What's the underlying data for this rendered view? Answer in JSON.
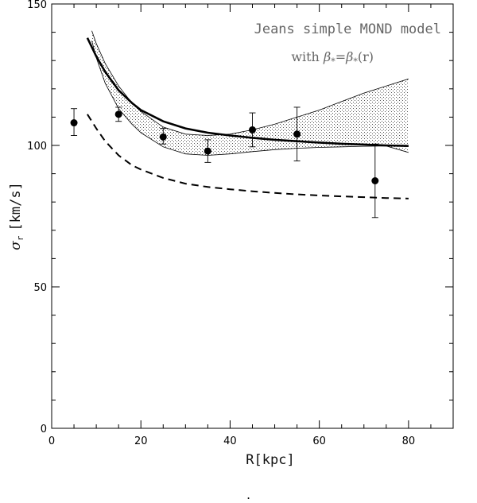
{
  "chart_data": {
    "type": "scatter",
    "title": "Jeans simple MOND model",
    "subtitle": {
      "prefix": "with ",
      "beta1": "β",
      "sub1": "*",
      "eq": "=",
      "beta2": "β",
      "sub2": "*",
      "suffix": "(r)"
    },
    "xlabel": "R[kpc]",
    "ylabel": {
      "symbol": "σ",
      "sub": "r",
      "unit": "[km/s]"
    },
    "xlim": [
      0,
      90
    ],
    "ylim": [
      0,
      150
    ],
    "x_ticks": [
      0,
      20,
      40,
      60,
      80
    ],
    "y_ticks": [
      0,
      50,
      100,
      150
    ],
    "grid": false,
    "series": [
      {
        "name": "data",
        "kind": "points_with_errorbars",
        "x": [
          5,
          15,
          25,
          35,
          45,
          55,
          72.5
        ],
        "y": [
          108,
          111,
          103,
          98,
          105.5,
          104,
          87.5
        ],
        "err_low": [
          4.5,
          2.5,
          2.5,
          4,
          6,
          9.5,
          13
        ],
        "err_high": [
          5,
          2.5,
          3,
          4,
          6,
          9.5,
          13
        ]
      },
      {
        "name": "model",
        "kind": "solid_thick",
        "x": [
          8,
          10,
          12,
          15,
          18,
          20,
          25,
          30,
          35,
          40,
          45,
          50,
          55,
          60,
          65,
          70,
          75,
          80
        ],
        "y": [
          138,
          131.5,
          126,
          119.5,
          115,
          112.5,
          108.5,
          106,
          104.5,
          103.5,
          102.7,
          102,
          101.5,
          101,
          100.6,
          100.3,
          100,
          99.8
        ]
      },
      {
        "name": "model_dashed",
        "kind": "dashed",
        "x": [
          8,
          10,
          12,
          15,
          18,
          20,
          25,
          30,
          35,
          40,
          45,
          50,
          55,
          60,
          65,
          70,
          75,
          80
        ],
        "y": [
          111,
          106,
          101.5,
          96.5,
          93,
          91.5,
          88.5,
          86.5,
          85.3,
          84.5,
          83.8,
          83.2,
          82.7,
          82.3,
          82,
          81.7,
          81.4,
          81.2
        ]
      },
      {
        "name": "band_upper",
        "kind": "band_edge",
        "x": [
          9,
          10,
          12,
          15,
          18,
          20,
          25,
          30,
          35,
          40,
          45,
          50,
          55,
          60,
          65,
          70,
          75,
          80
        ],
        "y": [
          140.5,
          136,
          129,
          121,
          115,
          112,
          106.5,
          104,
          103.5,
          104,
          105.5,
          107.5,
          110,
          112.5,
          115.5,
          118.5,
          121,
          123.5
        ]
      },
      {
        "name": "band_lower",
        "kind": "band_edge",
        "x": [
          9,
          10,
          12,
          15,
          18,
          20,
          25,
          30,
          35,
          40,
          45,
          50,
          55,
          60,
          65,
          70,
          75,
          80
        ],
        "y": [
          137,
          131,
          122,
          113,
          107.5,
          104.5,
          99.5,
          97,
          96.5,
          97,
          97.8,
          98.5,
          99,
          99.3,
          99.5,
          99.7,
          99.8,
          97.5
        ]
      }
    ],
    "footer_mark": "."
  }
}
